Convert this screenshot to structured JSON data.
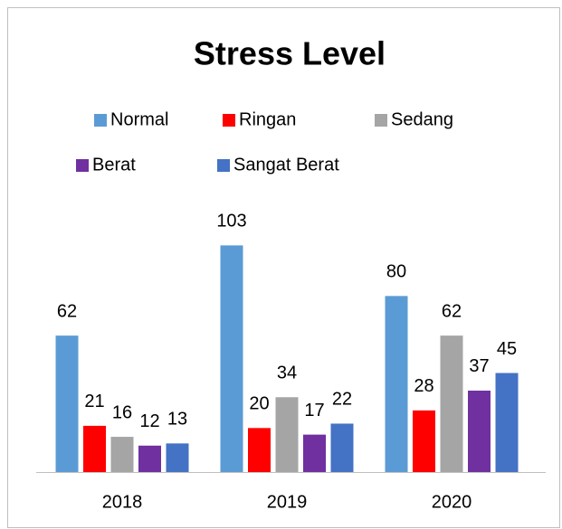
{
  "chart_data": {
    "type": "bar",
    "title": "Stress Level",
    "categories": [
      "2018",
      "2019",
      "2020"
    ],
    "series": [
      {
        "name": "Normal",
        "color": "#5b9bd5",
        "values": [
          62,
          103,
          80
        ]
      },
      {
        "name": "Ringan",
        "color": "#ff0000",
        "values": [
          21,
          20,
          28
        ]
      },
      {
        "name": "Sedang",
        "color": "#a5a5a5",
        "values": [
          16,
          34,
          62
        ]
      },
      {
        "name": "Berat",
        "color": "#7030a0",
        "values": [
          12,
          17,
          37
        ]
      },
      {
        "name": "Sangat Berat",
        "color": "#4472c4",
        "values": [
          13,
          22,
          45
        ]
      }
    ],
    "ylim": [
      0,
      120
    ],
    "legend": "top"
  }
}
